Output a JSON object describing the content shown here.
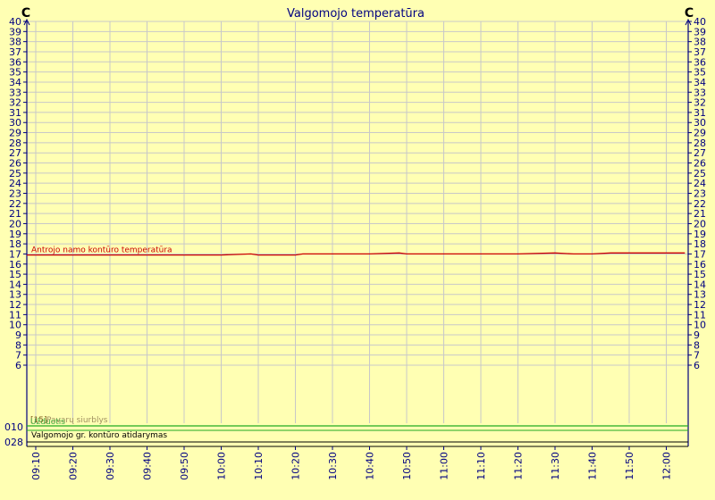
{
  "chart_data": {
    "type": "line",
    "title": "Valgomojo temperatūra",
    "y_unit_left": "C",
    "y_unit_right": "C",
    "ylim": [
      4,
      40
    ],
    "y_ticks": [
      "6",
      "7",
      "8",
      "9",
      "10",
      "11",
      "12",
      "13",
      "14",
      "15",
      "16",
      "17",
      "18",
      "19",
      "20",
      "21",
      "22",
      "23",
      "24",
      "25",
      "26",
      "27",
      "28",
      "29",
      "30",
      "31",
      "32",
      "33",
      "34",
      "35",
      "36",
      "37",
      "38",
      "39",
      "40"
    ],
    "x_ticks": [
      "09:10",
      "09:20",
      "09:30",
      "09:40",
      "09:50",
      "10:00",
      "10:10",
      "10:20",
      "10:30",
      "10:40",
      "10:50",
      "11:00",
      "11:10",
      "11:20",
      "11:30",
      "11:40",
      "11:50",
      "12:00"
    ],
    "grid": true,
    "series": [
      {
        "name": "Antrojo namo kontūro temperatūra",
        "color": "#cc0000",
        "x": [
          "09:10",
          "09:20",
          "09:30",
          "09:40",
          "09:50",
          "10:00",
          "10:08",
          "10:10",
          "10:20",
          "10:22",
          "10:30",
          "10:40",
          "10:48",
          "10:50",
          "11:00",
          "11:10",
          "11:20",
          "11:30",
          "11:35",
          "11:40",
          "11:45",
          "11:50",
          "11:55",
          "12:00",
          "12:05"
        ],
        "values": [
          16.9,
          16.9,
          16.9,
          16.9,
          16.9,
          16.9,
          17.0,
          16.9,
          16.9,
          17.0,
          17.0,
          17.0,
          17.1,
          17.0,
          17.0,
          17.0,
          17.0,
          17.1,
          17.0,
          17.0,
          17.1,
          17.1,
          17.1,
          17.1,
          17.1
        ]
      }
    ],
    "status_rows": {
      "left_labels": [
        "010",
        "028"
      ],
      "row1_texts": [
        "[15]",
        "Pavarų siurblys",
        "Užduotis"
      ],
      "row1_colors": [
        "#7a5a1a",
        "#a09060",
        "#44aa44"
      ],
      "row2_text": "Valgomojo gr. kontūro atidarymas",
      "line_color": "#22aa22"
    }
  }
}
